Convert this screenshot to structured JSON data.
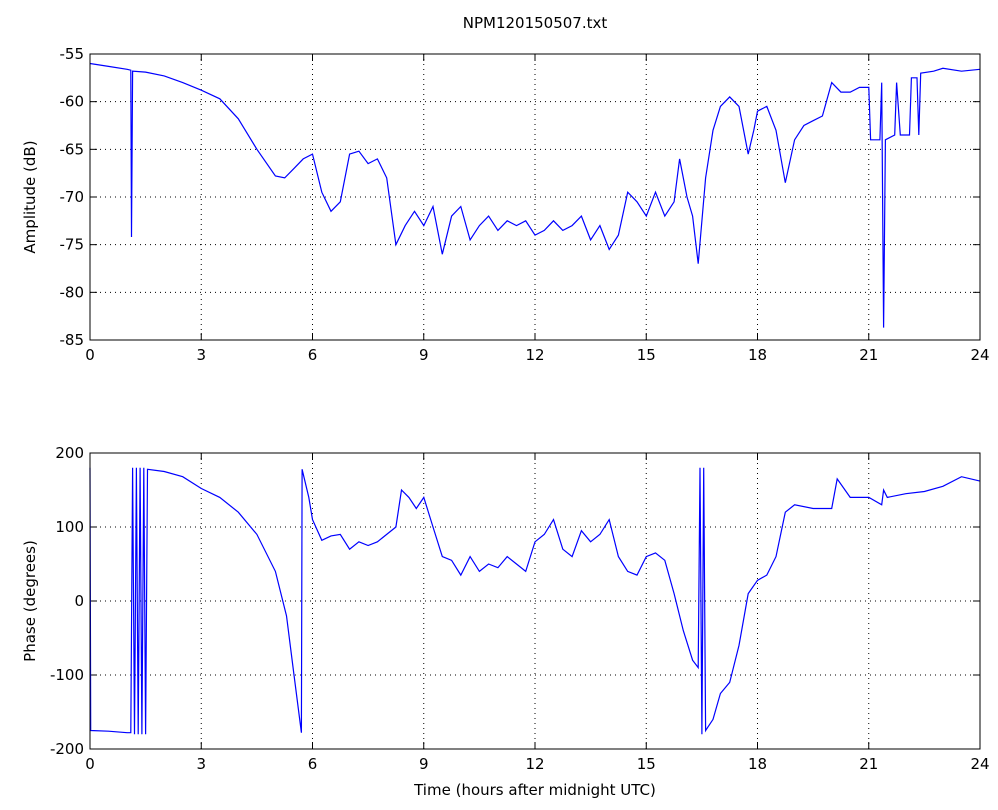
{
  "chart_data": [
    {
      "type": "line",
      "title": "NPM120150507.txt",
      "ylabel": "Amplitude (dB)",
      "xlim": [
        0,
        24
      ],
      "ylim": [
        -85,
        -55
      ],
      "xticks": [
        0,
        3,
        6,
        9,
        12,
        15,
        18,
        21,
        24
      ],
      "yticks": [
        -85,
        -80,
        -75,
        -70,
        -65,
        -60,
        -55
      ],
      "grid": true,
      "x": [
        0,
        0.5,
        1.0,
        1.1,
        1.12,
        1.15,
        1.5,
        2.0,
        2.5,
        3.0,
        3.5,
        4.0,
        4.5,
        5.0,
        5.25,
        5.5,
        5.75,
        6.0,
        6.25,
        6.5,
        6.75,
        7.0,
        7.25,
        7.5,
        7.75,
        8.0,
        8.25,
        8.5,
        8.75,
        9.0,
        9.25,
        9.5,
        9.75,
        10.0,
        10.25,
        10.5,
        10.75,
        11.0,
        11.25,
        11.5,
        11.75,
        12.0,
        12.25,
        12.5,
        12.75,
        13.0,
        13.25,
        13.5,
        13.75,
        14.0,
        14.25,
        14.5,
        14.75,
        15.0,
        15.25,
        15.5,
        15.75,
        15.9,
        16.1,
        16.25,
        16.4,
        16.6,
        16.8,
        17.0,
        17.25,
        17.5,
        17.75,
        17.9,
        18.0,
        18.25,
        18.5,
        18.75,
        19.0,
        19.25,
        19.5,
        19.75,
        20.0,
        20.25,
        20.5,
        20.75,
        21.0,
        21.05,
        21.3,
        21.35,
        21.4,
        21.45,
        21.7,
        21.75,
        21.85,
        22.1,
        22.15,
        22.3,
        22.35,
        22.4,
        22.75,
        23.0,
        23.5,
        24.0
      ],
      "series": [
        {
          "color": "#0000ff",
          "values": [
            -56.0,
            -56.3,
            -56.6,
            -56.7,
            -74.2,
            -56.8,
            -56.9,
            -57.3,
            -58.0,
            -58.8,
            -59.7,
            -61.8,
            -65.0,
            -67.8,
            -68.0,
            -67.0,
            -66.0,
            -65.5,
            -69.5,
            -71.5,
            -70.5,
            -65.5,
            -65.2,
            -66.5,
            -66.0,
            -68.0,
            -75.0,
            -73.0,
            -71.5,
            -73.0,
            -71.0,
            -76.0,
            -72.0,
            -71.0,
            -74.5,
            -73.0,
            -72.0,
            -73.5,
            -72.5,
            -73.0,
            -72.5,
            -74.0,
            -73.5,
            -72.5,
            -73.5,
            -73.0,
            -72.0,
            -74.5,
            -73.0,
            -75.5,
            -74.0,
            -69.5,
            -70.5,
            -72.0,
            -69.5,
            -72.0,
            -70.5,
            -66.0,
            -70.0,
            -72.0,
            -77.0,
            -68.0,
            -63.0,
            -60.5,
            -59.5,
            -60.5,
            -65.5,
            -63.0,
            -61.0,
            -60.5,
            -63.0,
            -68.5,
            -64.0,
            -62.5,
            -62.0,
            -61.5,
            -58.0,
            -59.0,
            -59.0,
            -58.5,
            -58.5,
            -64.0,
            -64.0,
            -58.0,
            -83.7,
            -64.0,
            -63.5,
            -58.0,
            -63.5,
            -63.5,
            -57.5,
            -57.5,
            -63.5,
            -57.0,
            -56.8,
            -56.5,
            -56.8,
            -56.6
          ]
        }
      ]
    },
    {
      "type": "line",
      "ylabel": "Phase (degrees)",
      "xlabel": "Time (hours after midnight UTC)",
      "xlim": [
        0,
        24
      ],
      "ylim": [
        -200,
        200
      ],
      "xticks": [
        0,
        3,
        6,
        9,
        12,
        15,
        18,
        21,
        24
      ],
      "yticks": [
        -200,
        -100,
        0,
        100,
        200
      ],
      "grid": true,
      "x": [
        0,
        0.02,
        0.5,
        1.0,
        1.1,
        1.15,
        1.2,
        1.25,
        1.3,
        1.35,
        1.4,
        1.45,
        1.5,
        1.55,
        2.0,
        2.5,
        3.0,
        3.5,
        4.0,
        4.5,
        5.0,
        5.3,
        5.5,
        5.7,
        5.72,
        5.9,
        6.0,
        6.25,
        6.5,
        6.75,
        7.0,
        7.25,
        7.5,
        7.75,
        8.0,
        8.25,
        8.4,
        8.6,
        8.8,
        9.0,
        9.25,
        9.5,
        9.75,
        10.0,
        10.25,
        10.5,
        10.75,
        11.0,
        11.25,
        11.5,
        11.75,
        12.0,
        12.25,
        12.5,
        12.75,
        13.0,
        13.25,
        13.5,
        13.75,
        14.0,
        14.25,
        14.5,
        14.75,
        15.0,
        15.25,
        15.5,
        15.75,
        16.0,
        16.25,
        16.4,
        16.45,
        16.5,
        16.55,
        16.6,
        16.8,
        17.0,
        17.25,
        17.5,
        17.75,
        18.0,
        18.25,
        18.5,
        18.75,
        19.0,
        19.5,
        20.0,
        20.15,
        20.5,
        21.0,
        21.35,
        21.4,
        21.5,
        22.0,
        22.5,
        23.0,
        23.5,
        24.0
      ],
      "series": [
        {
          "color": "#0000ff",
          "values": [
            180,
            -175,
            -176,
            -178,
            -178,
            180,
            -180,
            180,
            -180,
            180,
            -180,
            180,
            -180,
            178,
            175,
            168,
            152,
            140,
            120,
            90,
            40,
            -20,
            -100,
            -178,
            178,
            140,
            110,
            82,
            88,
            90,
            70,
            80,
            75,
            80,
            90,
            100,
            150,
            140,
            125,
            140,
            100,
            60,
            55,
            35,
            60,
            40,
            50,
            45,
            60,
            50,
            40,
            80,
            90,
            110,
            70,
            60,
            95,
            80,
            90,
            110,
            60,
            40,
            35,
            60,
            65,
            55,
            10,
            -40,
            -80,
            -90,
            180,
            -180,
            180,
            -175,
            -160,
            -125,
            -110,
            -60,
            10,
            28,
            35,
            60,
            120,
            130,
            125,
            125,
            165,
            140,
            140,
            130,
            150,
            140,
            145,
            148,
            155,
            168,
            162
          ]
        }
      ]
    }
  ]
}
